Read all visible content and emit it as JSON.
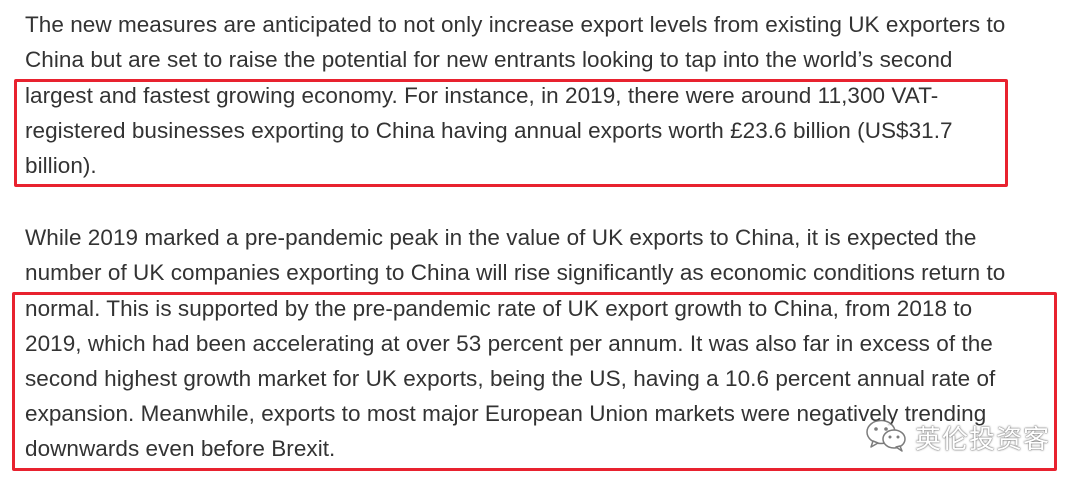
{
  "paragraphs": [
    {
      "lines": [
        "The new measures are anticipated to not only increase export levels from existing UK exporters to",
        "China but are set to raise the potential for new entrants looking to tap into the world’s second",
        "largest and fastest growing economy. For instance, in 2019, there were around 11,300 VAT-",
        "registered businesses exporting to China having annual exports worth £23.6 billion (US$31.7",
        "billion)."
      ]
    },
    {
      "lines": [
        "While 2019 marked a pre-pandemic peak in the value of UK exports to China, it is expected the",
        "number of UK companies exporting to China will rise significantly as economic conditions return to",
        "normal. This is supported by the pre-pandemic rate of UK export growth to China, from 2018 to",
        "2019, which had been accelerating at over 53 percent per annum. It was also far in excess of the",
        "second highest growth market for UK exports, being the US, having a 10.6 percent annual rate of",
        "expansion. Meanwhile, exports to most major European Union markets were negatively trending",
        "downwards even before Brexit."
      ]
    }
  ],
  "highlight_color": "#e8222f",
  "text_color": "#333333",
  "watermark": {
    "icon": "wechat-icon",
    "text": "英伦投资客"
  }
}
